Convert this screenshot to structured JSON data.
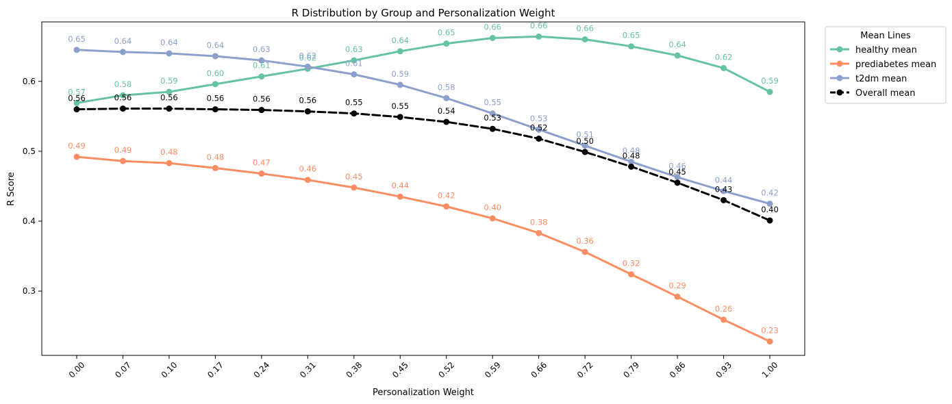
{
  "chart_data": {
    "type": "line",
    "title": "R Distribution by Group and Personalization Weight",
    "xlabel": "Personalization Weight",
    "ylabel": "R Score",
    "x": [
      "0.00",
      "0.07",
      "0.10",
      "0.17",
      "0.24",
      "0.31",
      "0.38",
      "0.45",
      "0.52",
      "0.59",
      "0.66",
      "0.72",
      "0.79",
      "0.86",
      "0.93",
      "1.00"
    ],
    "ylim": [
      0.208,
      0.685
    ],
    "yticks": [
      "0.3",
      "0.4",
      "0.5",
      "0.6"
    ],
    "ytick_values": [
      0.3,
      0.4,
      0.5,
      0.6
    ],
    "grid": false,
    "legend": {
      "title": "Mean Lines",
      "placement": "outside-top-right"
    },
    "series": [
      {
        "name": "healthy mean",
        "color": "#66c2a5",
        "dashed": false,
        "values": [
          0.569,
          0.58,
          0.585,
          0.596,
          0.607,
          0.618,
          0.63,
          0.643,
          0.654,
          0.662,
          0.664,
          0.66,
          0.65,
          0.637,
          0.619,
          0.585
        ],
        "labels": [
          "0.57",
          "0.58",
          "0.59",
          "0.60",
          "0.61",
          "0.62",
          "0.63",
          "0.64",
          "0.65",
          "0.66",
          "0.66",
          "0.66",
          "0.65",
          "0.64",
          "0.62",
          "0.59"
        ]
      },
      {
        "name": "prediabetes mean",
        "color": "#fc8d62",
        "dashed": false,
        "values": [
          0.492,
          0.486,
          0.483,
          0.476,
          0.468,
          0.459,
          0.448,
          0.435,
          0.421,
          0.404,
          0.383,
          0.356,
          0.324,
          0.292,
          0.259,
          0.228
        ],
        "labels": [
          "0.49",
          "0.49",
          "0.48",
          "0.48",
          "0.47",
          "0.46",
          "0.45",
          "0.44",
          "0.42",
          "0.40",
          "0.38",
          "0.36",
          "0.32",
          "0.29",
          "0.26",
          "0.23"
        ]
      },
      {
        "name": "t2dm mean",
        "color": "#8da0cb",
        "dashed": false,
        "values": [
          0.645,
          0.642,
          0.64,
          0.636,
          0.63,
          0.621,
          0.61,
          0.595,
          0.576,
          0.554,
          0.531,
          0.508,
          0.485,
          0.463,
          0.443,
          0.425
        ],
        "labels": [
          "0.65",
          "0.64",
          "0.64",
          "0.64",
          "0.63",
          "0.62",
          "0.61",
          "0.59",
          "0.58",
          "0.55",
          "0.53",
          "0.51",
          "0.48",
          "0.46",
          "0.44",
          "0.42"
        ]
      },
      {
        "name": "Overall mean",
        "color": "#000000",
        "dashed": true,
        "values": [
          0.56,
          0.561,
          0.561,
          0.56,
          0.559,
          0.557,
          0.554,
          0.549,
          0.542,
          0.532,
          0.518,
          0.499,
          0.478,
          0.455,
          0.43,
          0.401
        ],
        "labels": [
          "0.56",
          "0.56",
          "0.56",
          "0.56",
          "0.56",
          "0.56",
          "0.55",
          "0.55",
          "0.54",
          "0.53",
          "0.52",
          "0.50",
          "0.48",
          "0.45",
          "0.43",
          "0.40"
        ]
      }
    ]
  }
}
